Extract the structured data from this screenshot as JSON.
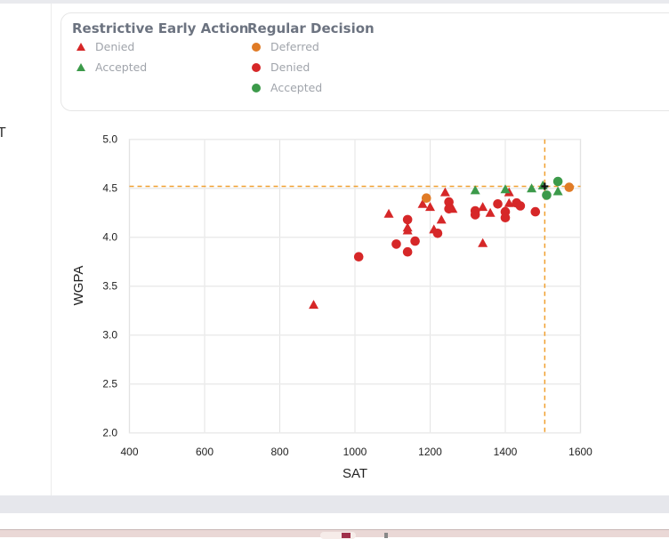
{
  "page": {
    "side_label_fragment": "T"
  },
  "legend": {
    "groups": [
      {
        "title": "Restrictive Early Action",
        "items": [
          {
            "label": "Denied",
            "shape": "triangle",
            "color": "#d62728"
          },
          {
            "label": "Accepted",
            "shape": "triangle",
            "color": "#2ca02c"
          }
        ]
      },
      {
        "title": "Regular Decision",
        "items": [
          {
            "label": "Deferred",
            "shape": "circle",
            "color": "#e07b26"
          },
          {
            "label": "Denied",
            "shape": "circle",
            "color": "#d62728"
          },
          {
            "label": "Accepted",
            "shape": "circle",
            "color": "#3c9a4a"
          }
        ]
      }
    ]
  },
  "chart_data": {
    "type": "scatter",
    "title": "",
    "xlabel": "SAT",
    "ylabel": "WGPA",
    "xlim": [
      400,
      1600
    ],
    "ylim": [
      2.0,
      5.0
    ],
    "xticks": [
      "400",
      "600",
      "800",
      "1000",
      "1200",
      "1400",
      "1600"
    ],
    "yticks": [
      "2.0",
      "2.5",
      "3.0",
      "3.5",
      "4.0",
      "4.5",
      "5.0"
    ],
    "grid": true,
    "legend_position": "top",
    "reference_lines": {
      "x": 1505,
      "y": 4.52,
      "color": "#f0a030",
      "style": "dashed"
    },
    "user_marker": {
      "x": 1505,
      "y": 4.52,
      "symbol": "cross",
      "color": "#111111"
    },
    "colors": {
      "denied": "#d62728",
      "accepted": "#3c9a4a",
      "deferred": "#e07b26"
    },
    "series": [
      {
        "name": "Restrictive Early Action - Denied",
        "shape": "triangle",
        "color": "#d62728",
        "points": [
          [
            890,
            3.31
          ],
          [
            1090,
            4.24
          ],
          [
            1140,
            4.1
          ],
          [
            1140,
            4.07
          ],
          [
            1180,
            4.34
          ],
          [
            1200,
            4.31
          ],
          [
            1210,
            4.08
          ],
          [
            1230,
            4.18
          ],
          [
            1240,
            4.46
          ],
          [
            1260,
            4.29
          ],
          [
            1340,
            4.31
          ],
          [
            1340,
            3.94
          ],
          [
            1360,
            4.25
          ],
          [
            1410,
            4.46
          ],
          [
            1410,
            4.35
          ]
        ]
      },
      {
        "name": "Restrictive Early Action - Accepted",
        "shape": "triangle",
        "color": "#3c9a4a",
        "points": [
          [
            1320,
            4.48
          ],
          [
            1400,
            4.49
          ],
          [
            1470,
            4.5
          ],
          [
            1500,
            4.53
          ],
          [
            1540,
            4.47
          ]
        ]
      },
      {
        "name": "Regular Decision - Deferred",
        "shape": "circle",
        "color": "#e07b26",
        "points": [
          [
            1190,
            4.4
          ],
          [
            1570,
            4.51
          ]
        ]
      },
      {
        "name": "Regular Decision - Denied",
        "shape": "circle",
        "color": "#d62728",
        "points": [
          [
            1010,
            3.8
          ],
          [
            1110,
            3.93
          ],
          [
            1140,
            4.18
          ],
          [
            1140,
            3.85
          ],
          [
            1160,
            3.96
          ],
          [
            1220,
            4.04
          ],
          [
            1250,
            4.36
          ],
          [
            1250,
            4.29
          ],
          [
            1320,
            4.27
          ],
          [
            1320,
            4.23
          ],
          [
            1380,
            4.34
          ],
          [
            1400,
            4.26
          ],
          [
            1400,
            4.2
          ],
          [
            1430,
            4.35
          ],
          [
            1440,
            4.32
          ],
          [
            1480,
            4.26
          ]
        ]
      },
      {
        "name": "Regular Decision - Accepted",
        "shape": "circle",
        "color": "#3c9a4a",
        "points": [
          [
            1510,
            4.43
          ],
          [
            1540,
            4.57
          ]
        ]
      }
    ]
  }
}
